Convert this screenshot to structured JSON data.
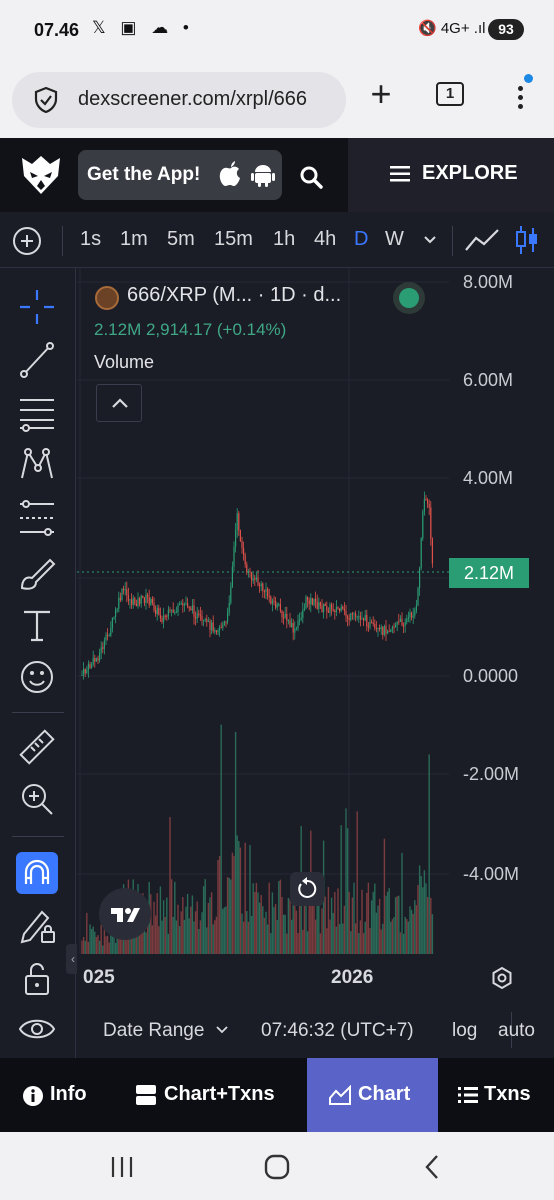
{
  "status_bar": {
    "time": "07.46",
    "left_icons": "𝕏 ▣ ☁ •",
    "right_icons": "🔇 4G+ .ıl",
    "battery": "93"
  },
  "browser": {
    "url": "dexscreener.com/xrpl/666",
    "tab_count": "1"
  },
  "header": {
    "get_app_label": "Get the App!",
    "explore_label": "EXPLORE"
  },
  "toolbar": {
    "timeframes": [
      "1s",
      "1m",
      "5m",
      "15m",
      "1h",
      "4h",
      "D",
      "W"
    ],
    "active_timeframe": "D"
  },
  "chart": {
    "legend_title": "666/XRP (M... · 1D · d...",
    "legend_price": "2.12M  2,914.17 (+0.14%)",
    "legend_volume": "Volume",
    "y_axis_labels": [
      "8.00M",
      "6.00M",
      "4.00M",
      "0.0000",
      "-2.00M",
      "-4.00M"
    ],
    "price_tag": "2.12M",
    "x_axis_labels": [
      "025",
      "2026"
    ],
    "colors": {
      "up": "#2a9d74",
      "down": "#e0514a",
      "accent": "#3a78ff"
    }
  },
  "chart_footer": {
    "date_range": "Date Range",
    "clock": "07:46:32 (UTC+7)",
    "log": "log",
    "auto": "auto"
  },
  "bottom_nav": {
    "tabs": [
      "Info",
      "Chart+Txns",
      "Chart",
      "Txns"
    ],
    "active": "Chart"
  }
}
